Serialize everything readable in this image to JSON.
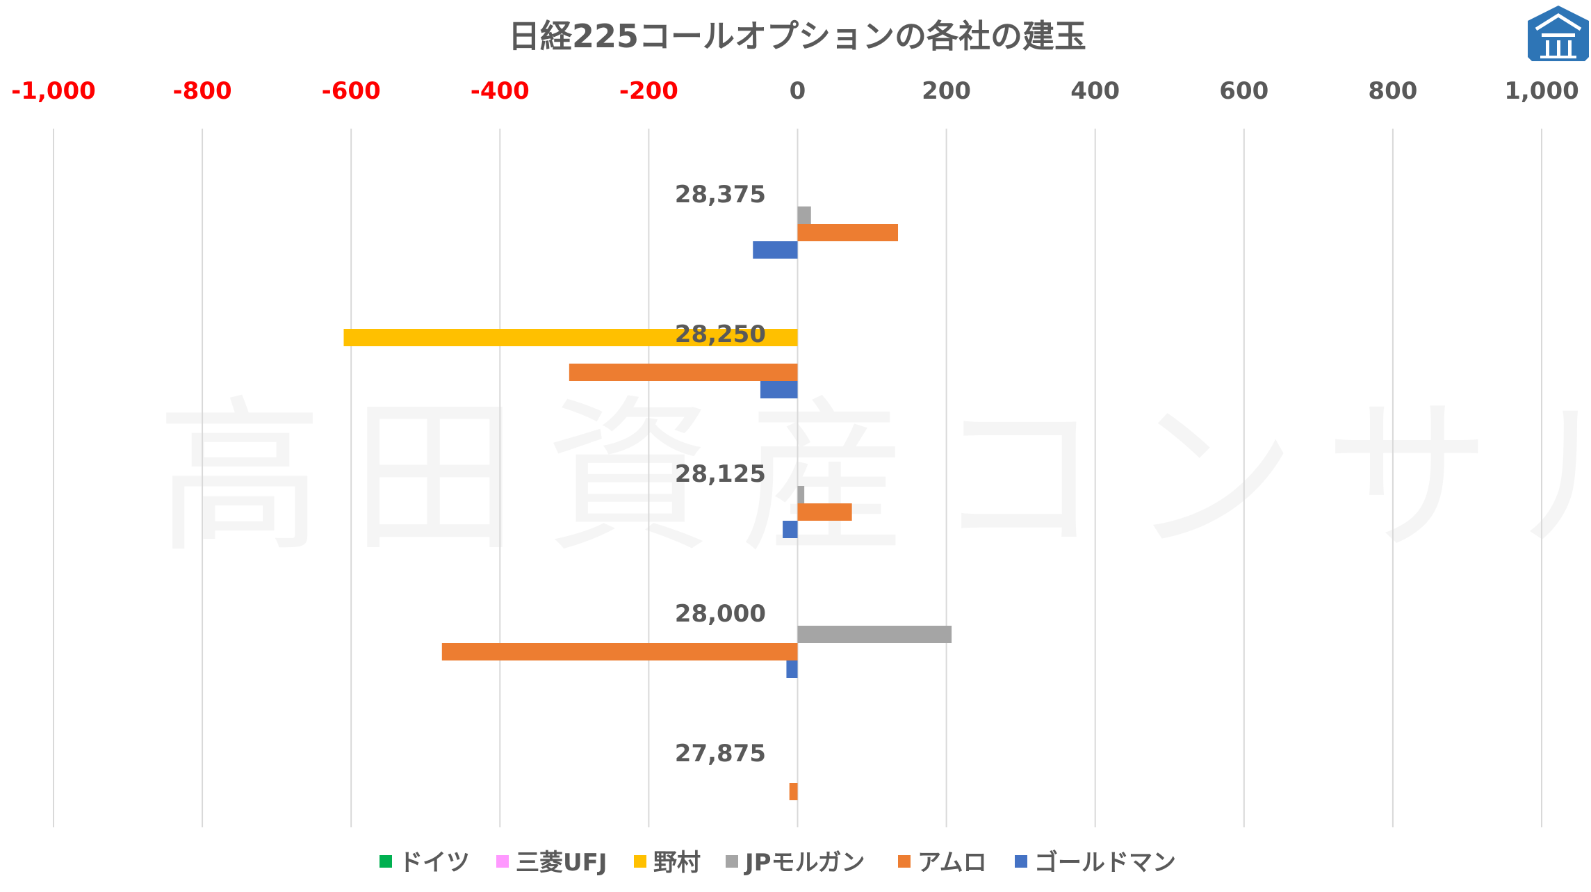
{
  "chart_data": {
    "type": "bar",
    "orientation": "horizontal",
    "title": "日経225コールオプションの各社の建玉",
    "xlim": [
      -1000,
      1000
    ],
    "x_ticks": [
      "-1,000",
      "-800",
      "-600",
      "-400",
      "-200",
      "0",
      "200",
      "400",
      "600",
      "800",
      "1,000"
    ],
    "x_tick_values": [
      -1000,
      -800,
      -600,
      -400,
      -200,
      0,
      200,
      400,
      600,
      800,
      1000
    ],
    "negative_tick_color": "#FF0000",
    "positive_tick_color": "#595959",
    "grid": true,
    "legend_position": "bottom",
    "categories": [
      "28,375",
      "28,250",
      "28,125",
      "28,000",
      "27,875"
    ],
    "series": [
      {
        "name": "ドイツ",
        "color": "#00B050",
        "values": [
          0,
          0,
          0,
          0,
          0
        ]
      },
      {
        "name": "三菱UFJ",
        "color": "#FF99FF",
        "values": [
          0,
          0,
          0,
          0,
          0
        ]
      },
      {
        "name": "野村",
        "color": "#FFC000",
        "values": [
          0,
          -610,
          0,
          0,
          0
        ]
      },
      {
        "name": "JPモルガン",
        "color": "#A5A5A5",
        "values": [
          18,
          0,
          9,
          207,
          0
        ]
      },
      {
        "name": "アムロ",
        "color": "#ED7D31",
        "values": [
          135,
          -307,
          73,
          -478,
          -11
        ]
      },
      {
        "name": "ゴールドマン",
        "color": "#4472C4",
        "values": [
          -60,
          -50,
          -20,
          -15,
          0
        ]
      }
    ]
  },
  "watermark": "高田資産コンサル",
  "logo_icon": "building-logo-icon"
}
